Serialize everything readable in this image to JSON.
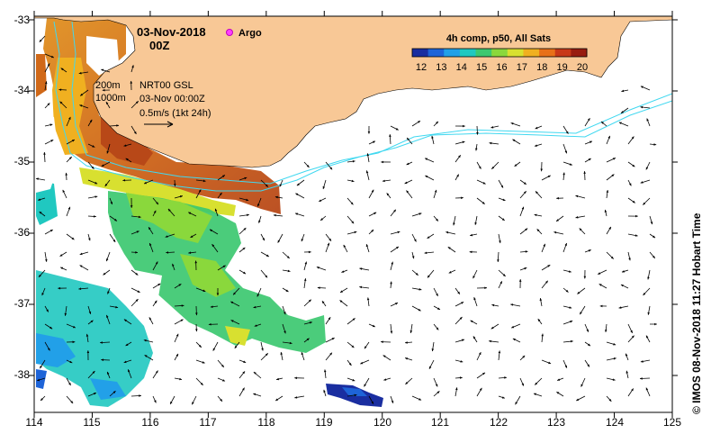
{
  "header": {
    "date": "03-Nov-2018",
    "time": "00Z",
    "argo_label": "Argo"
  },
  "legend": {
    "title": "4h comp, p50, All Sats",
    "ticks": [
      "12",
      "13",
      "14",
      "15",
      "16",
      "17",
      "18",
      "19",
      "20"
    ],
    "colors": [
      "#1a2ea0",
      "#1e64d8",
      "#22a0e8",
      "#20c8c0",
      "#3cc870",
      "#8ad83c",
      "#d8e030",
      "#f0b020",
      "#e87018",
      "#c83818",
      "#981c10"
    ]
  },
  "info": {
    "contour_200": "200m",
    "contour_1000": "1000m",
    "product": "NRT00 GSL",
    "datetime": "03-Nov 00:00Z",
    "scale": "0.5m/s (1kt 24h)"
  },
  "axes": {
    "x_ticks": [
      "114",
      "115",
      "116",
      "117",
      "118",
      "119",
      "120",
      "121",
      "122",
      "123",
      "124",
      "125"
    ],
    "y_ticks": [
      "-33",
      "-34",
      "-35",
      "-36",
      "-37",
      "-38"
    ]
  },
  "credit": "© IMOS 08-Nov-2018 11:27 Hobart Time",
  "colors": {
    "land": "#f8c896",
    "isobath": "#40d8f0",
    "frame": "#000000"
  }
}
